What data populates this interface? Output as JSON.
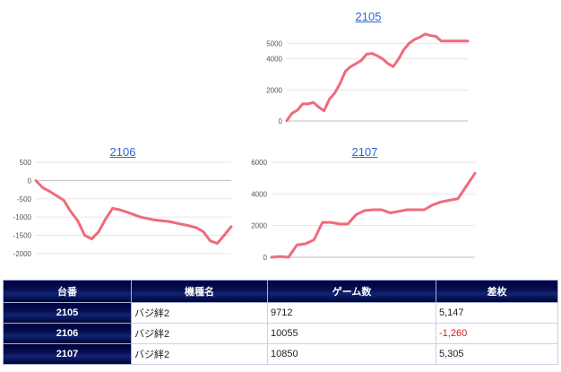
{
  "charts": [
    {
      "title": "2105",
      "chart_data": {
        "type": "line",
        "y_ticks": [
          0,
          2000,
          4000,
          5000
        ],
        "ylim": [
          0,
          6000
        ],
        "grid": true,
        "legend": "",
        "series": [
          {
            "x": [
              0,
              1,
              2,
              3,
              4,
              5,
              6,
              7,
              8,
              9,
              10,
              11,
              12,
              13,
              14,
              15,
              16,
              17,
              18,
              19,
              20,
              21,
              22,
              23,
              24,
              25,
              26,
              27,
              28,
              29,
              30,
              31,
              32,
              33,
              34
            ],
            "values": [
              30,
              500,
              700,
              1100,
              1100,
              1200,
              900,
              650,
              1400,
              1800,
              2400,
              3200,
              3500,
              3700,
              3900,
              4300,
              4350,
              4200,
              4000,
              3700,
              3500,
              4000,
              4600,
              5000,
              5250,
              5400,
              5600,
              5500,
              5450,
              5147,
              5147,
              5147,
              5147,
              5147,
              5147
            ]
          }
        ]
      }
    },
    {
      "title": "2106",
      "chart_data": {
        "type": "line",
        "y_ticks": [
          500,
          0,
          -500,
          -1000,
          -1500,
          -2000
        ],
        "ylim": [
          -2100,
          500
        ],
        "grid": true,
        "legend": "",
        "series": [
          {
            "x": [
              0,
              1,
              2,
              3,
              4,
              5,
              6,
              7,
              8,
              9,
              10,
              11,
              12,
              13,
              14,
              15,
              16,
              17,
              18,
              19,
              20,
              21,
              22,
              23,
              24,
              25,
              26,
              27,
              28
            ],
            "values": [
              0,
              -200,
              -300,
              -420,
              -540,
              -850,
              -1100,
              -1500,
              -1600,
              -1400,
              -1050,
              -760,
              -800,
              -860,
              -930,
              -1000,
              -1040,
              -1080,
              -1100,
              -1120,
              -1160,
              -1200,
              -1240,
              -1290,
              -1400,
              -1650,
              -1720,
              -1500,
              -1260
            ]
          }
        ]
      }
    },
    {
      "title": "2107",
      "chart_data": {
        "type": "line",
        "y_ticks": [
          0,
          2000,
          4000,
          6000
        ],
        "ylim": [
          0,
          6000
        ],
        "grid": true,
        "legend": "",
        "series": [
          {
            "x": [
              0,
              1,
              2,
              3,
              4,
              5,
              6,
              7,
              8,
              9,
              10,
              11,
              12,
              13,
              14,
              15,
              16,
              17,
              18,
              19,
              20,
              21,
              22,
              23,
              24
            ],
            "values": [
              0,
              50,
              0,
              780,
              850,
              1100,
              2200,
              2200,
              2100,
              2100,
              2700,
              2950,
              3000,
              3000,
              2800,
              2900,
              3000,
              3000,
              3000,
              3300,
              3500,
              3600,
              3700,
              4500,
              5305
            ]
          }
        ]
      }
    }
  ],
  "table": {
    "headers": [
      "台番",
      "機種名",
      "ゲーム数",
      "差枚"
    ],
    "rows": [
      {
        "machine_id": "2105",
        "model": "バジ絆2",
        "games": "9712",
        "diff": "5,147",
        "negative": false
      },
      {
        "machine_id": "2106",
        "model": "バジ絆2",
        "games": "10055",
        "diff": "-1,260",
        "negative": true
      },
      {
        "machine_id": "2107",
        "model": "バジ絆2",
        "games": "10850",
        "diff": "5,305",
        "negative": false
      }
    ]
  },
  "colors": {
    "line": "#ef6b7c",
    "link": "#3366cc",
    "header_bg": "#000043",
    "negative": "#d11f1f"
  }
}
